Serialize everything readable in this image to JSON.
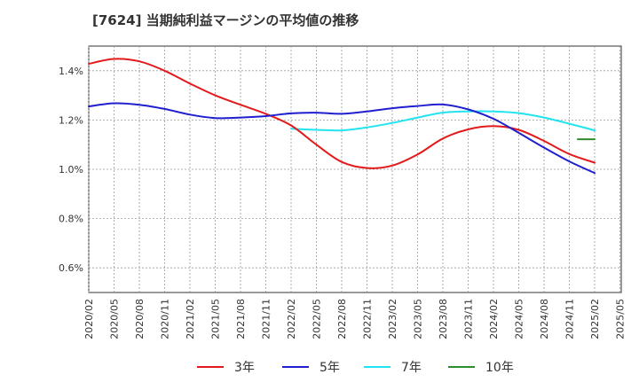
{
  "chart_data": {
    "type": "line",
    "title": "[7624]  当期純利益マージンの平均値の推移",
    "xlabel": "",
    "ylabel": "",
    "ylim": [
      0.5,
      1.5
    ],
    "x_tick_labels": [
      "2020/02",
      "2020/05",
      "2020/08",
      "2020/11",
      "2021/02",
      "2021/05",
      "2021/08",
      "2021/11",
      "2022/02",
      "2022/05",
      "2022/08",
      "2022/11",
      "2023/02",
      "2023/05",
      "2023/08",
      "2023/11",
      "2024/02",
      "2024/05",
      "2024/08",
      "2024/11",
      "2025/02",
      "2025/05"
    ],
    "y_ticks": [
      0.6,
      0.8,
      1.0,
      1.2,
      1.4
    ],
    "y_tick_labels": [
      "0.6%",
      "0.8%",
      "1.0%",
      "1.2%",
      "1.4%"
    ],
    "grid": true,
    "legend_position": "bottom",
    "series": [
      {
        "name": "3年",
        "color": "#e31a1c",
        "points": [
          [
            "2020/02",
            1.428
          ],
          [
            "2020/05",
            1.448
          ],
          [
            "2020/08",
            1.438
          ],
          [
            "2020/11",
            1.4
          ],
          [
            "2021/02",
            1.348
          ],
          [
            "2021/05",
            1.3
          ],
          [
            "2021/08",
            1.262
          ],
          [
            "2021/11",
            1.225
          ],
          [
            "2022/02",
            1.178
          ],
          [
            "2022/05",
            1.1
          ],
          [
            "2022/08",
            1.03
          ],
          [
            "2022/11",
            1.005
          ],
          [
            "2023/02",
            1.015
          ],
          [
            "2023/05",
            1.06
          ],
          [
            "2023/08",
            1.125
          ],
          [
            "2023/11",
            1.162
          ],
          [
            "2024/02",
            1.175
          ],
          [
            "2024/05",
            1.16
          ],
          [
            "2024/08",
            1.115
          ],
          [
            "2024/11",
            1.062
          ],
          [
            "2025/02",
            1.027
          ]
        ]
      },
      {
        "name": "5年",
        "color": "#1f1fcf",
        "points": [
          [
            "2020/02",
            1.255
          ],
          [
            "2020/05",
            1.268
          ],
          [
            "2020/08",
            1.262
          ],
          [
            "2020/11",
            1.245
          ],
          [
            "2021/02",
            1.222
          ],
          [
            "2021/05",
            1.208
          ],
          [
            "2021/08",
            1.21
          ],
          [
            "2021/11",
            1.216
          ],
          [
            "2022/02",
            1.227
          ],
          [
            "2022/05",
            1.23
          ],
          [
            "2022/08",
            1.225
          ],
          [
            "2022/11",
            1.235
          ],
          [
            "2023/02",
            1.248
          ],
          [
            "2023/05",
            1.257
          ],
          [
            "2023/08",
            1.263
          ],
          [
            "2023/11",
            1.243
          ],
          [
            "2024/02",
            1.205
          ],
          [
            "2024/05",
            1.148
          ],
          [
            "2024/08",
            1.088
          ],
          [
            "2024/11",
            1.032
          ],
          [
            "2025/02",
            0.985
          ]
        ]
      },
      {
        "name": "7年",
        "color": "#22e4f0",
        "points": [
          [
            "2022/02",
            1.165
          ],
          [
            "2022/05",
            1.16
          ],
          [
            "2022/08",
            1.158
          ],
          [
            "2022/11",
            1.17
          ],
          [
            "2023/02",
            1.188
          ],
          [
            "2023/05",
            1.21
          ],
          [
            "2023/08",
            1.23
          ],
          [
            "2023/11",
            1.235
          ],
          [
            "2024/02",
            1.235
          ],
          [
            "2024/05",
            1.228
          ],
          [
            "2024/08",
            1.21
          ],
          [
            "2024/11",
            1.185
          ],
          [
            "2025/02",
            1.158
          ]
        ]
      },
      {
        "name": "10年",
        "color": "#2e8b2e",
        "points": [
          [
            "2024/12",
            1.122
          ],
          [
            "2025/02",
            1.122
          ]
        ]
      }
    ]
  }
}
